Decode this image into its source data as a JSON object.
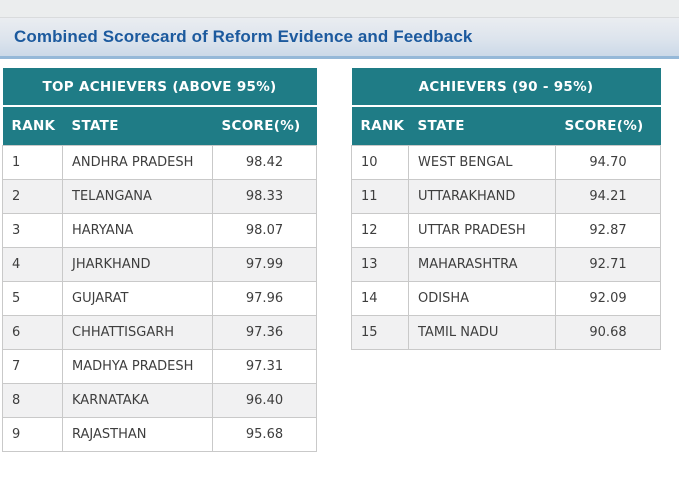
{
  "page": {
    "title": "Combined Scorecard of Reform Evidence and Feedback"
  },
  "colors": {
    "table_header_teal": "#1f7c86",
    "page_title_blue": "#1c5a9e",
    "title_bar_border_blue": "#95b8d8",
    "zebra_row_grey": "#f1f1f2",
    "cell_border_grey": "#c9c9c9",
    "top_strip_grey": "#ebedee"
  },
  "tables": [
    {
      "title": "TOP ACHIEVERS (ABOVE 95%)",
      "columns": [
        "RANK",
        "STATE",
        "SCORE(%)"
      ],
      "rows": [
        {
          "rank": "1",
          "state": "ANDHRA PRADESH",
          "score": "98.42"
        },
        {
          "rank": "2",
          "state": "TELANGANA",
          "score": "98.33"
        },
        {
          "rank": "3",
          "state": "HARYANA",
          "score": "98.07"
        },
        {
          "rank": "4",
          "state": "JHARKHAND",
          "score": "97.99"
        },
        {
          "rank": "5",
          "state": "GUJARAT",
          "score": "97.96"
        },
        {
          "rank": "6",
          "state": "CHHATTISGARH",
          "score": "97.36"
        },
        {
          "rank": "7",
          "state": "MADHYA PRADESH",
          "score": "97.31"
        },
        {
          "rank": "8",
          "state": "KARNATAKA",
          "score": "96.40"
        },
        {
          "rank": "9",
          "state": "RAJASTHAN",
          "score": "95.68"
        }
      ]
    },
    {
      "title": "ACHIEVERS (90 - 95%)",
      "columns": [
        "RANK",
        "STATE",
        "SCORE(%)"
      ],
      "rows": [
        {
          "rank": "10",
          "state": "WEST BENGAL",
          "score": "94.70"
        },
        {
          "rank": "11",
          "state": "UTTARAKHAND",
          "score": "94.21"
        },
        {
          "rank": "12",
          "state": "UTTAR PRADESH",
          "score": "92.87"
        },
        {
          "rank": "13",
          "state": "MAHARASHTRA",
          "score": "92.71"
        },
        {
          "rank": "14",
          "state": "ODISHA",
          "score": "92.09"
        },
        {
          "rank": "15",
          "state": "TAMIL NADU",
          "score": "90.68"
        }
      ]
    }
  ]
}
